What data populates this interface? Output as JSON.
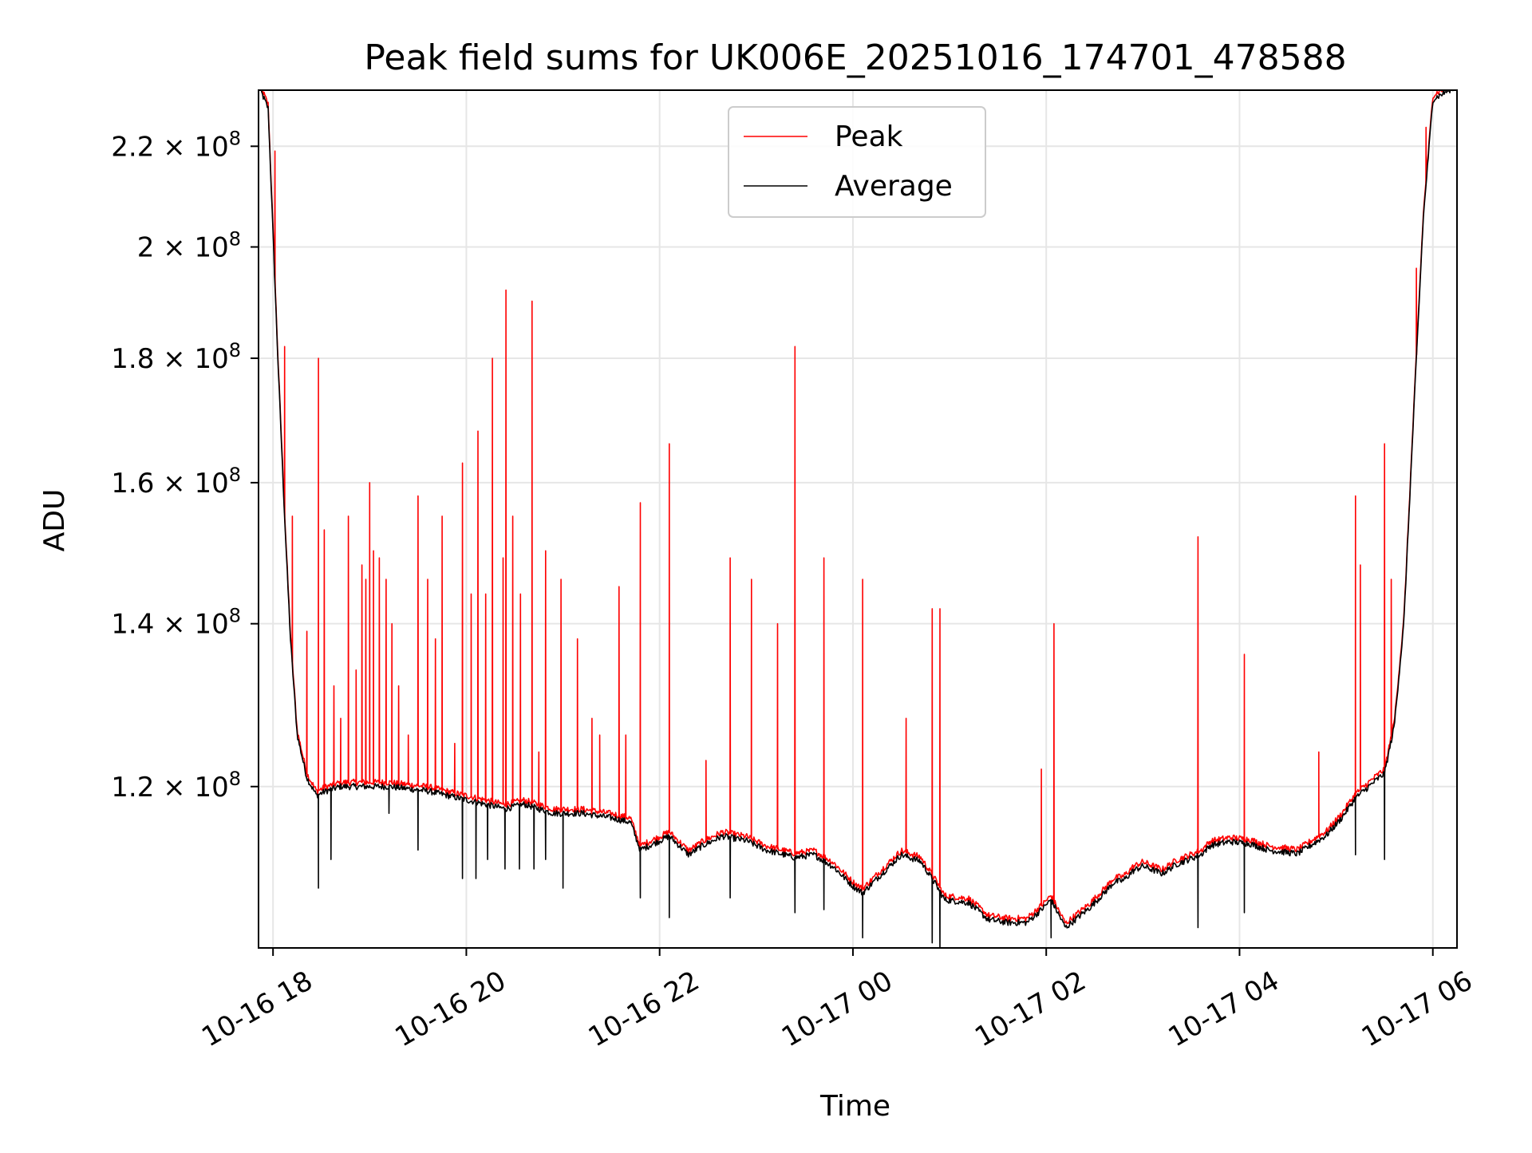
{
  "chart_data": {
    "type": "line",
    "title": "Peak field sums for UK006E_20251016_174701_478588",
    "xlabel": "Time",
    "ylabel": "ADU",
    "y_scale": "log",
    "x_unit": "hours since 2025-10-16 00:00",
    "xlim": [
      17.85,
      30.25
    ],
    "ylim": [
      103000000,
      232000000
    ],
    "grid": true,
    "legend_position": "top-center",
    "x_ticks": [
      {
        "value": 18,
        "label": "10-16 18"
      },
      {
        "value": 20,
        "label": "10-16 20"
      },
      {
        "value": 22,
        "label": "10-16 22"
      },
      {
        "value": 24,
        "label": "10-17 00"
      },
      {
        "value": 26,
        "label": "10-17 02"
      },
      {
        "value": 28,
        "label": "10-17 04"
      },
      {
        "value": 30,
        "label": "10-17 06"
      }
    ],
    "y_ticks": [
      {
        "value": 120000000,
        "mantissa": "1.2",
        "base": "10",
        "exp": "8"
      },
      {
        "value": 140000000,
        "mantissa": "1.4",
        "base": "10",
        "exp": "8"
      },
      {
        "value": 160000000,
        "mantissa": "1.6",
        "base": "10",
        "exp": "8"
      },
      {
        "value": 180000000,
        "mantissa": "1.8",
        "base": "10",
        "exp": "8"
      },
      {
        "value": 200000000,
        "mantissa": "2",
        "base": "10",
        "exp": "8"
      },
      {
        "value": 220000000,
        "mantissa": "2.2",
        "base": "10",
        "exp": "8"
      }
    ],
    "baseline": {
      "x": [
        17.85,
        17.95,
        18.05,
        18.12,
        18.18,
        18.25,
        18.35,
        18.45,
        18.55,
        18.7,
        18.9,
        19.2,
        19.6,
        20.0,
        20.4,
        20.6,
        20.9,
        21.2,
        21.5,
        21.7,
        21.8,
        22.1,
        22.3,
        22.45,
        22.65,
        22.9,
        23.1,
        23.4,
        23.6,
        23.8,
        24.0,
        24.1,
        24.3,
        24.5,
        24.7,
        24.85,
        24.95,
        25.2,
        25.4,
        25.6,
        25.8,
        25.95,
        26.05,
        26.2,
        26.35,
        26.45,
        26.6,
        26.7,
        26.8,
        26.9,
        27.0,
        27.2,
        27.35,
        27.5,
        27.6,
        27.7,
        27.9,
        28.1,
        28.3,
        28.45,
        28.6,
        28.75,
        28.9,
        29.05,
        29.2,
        29.4,
        29.5,
        29.6,
        29.7,
        29.8,
        29.9,
        30.0,
        30.25
      ],
      "values": [
        233000000,
        228000000,
        180000000,
        155000000,
        138000000,
        126000000,
        121000000,
        119000000,
        119500000,
        120000000,
        120000000,
        120000000,
        119500000,
        118500000,
        117500000,
        118000000,
        117000000,
        117000000,
        116500000,
        116000000,
        113000000,
        114500000,
        112500000,
        113500000,
        114500000,
        114000000,
        113000000,
        112200000,
        112500000,
        111200000,
        109200000,
        108500000,
        110500000,
        112500000,
        111800000,
        109500000,
        107800000,
        107500000,
        105800000,
        105500000,
        105500000,
        106800000,
        107800000,
        105000000,
        106200000,
        107000000,
        108500000,
        109600000,
        109800000,
        110800000,
        111300000,
        110500000,
        111500000,
        112100000,
        112500000,
        113500000,
        113900000,
        113700000,
        113000000,
        112800000,
        112600000,
        113600000,
        114600000,
        116400000,
        118700000,
        120600000,
        121500000,
        127000000,
        140000000,
        170000000,
        205000000,
        230000000,
        233000000
      ]
    },
    "series": [
      {
        "name": "Peak",
        "color": "#ff0000",
        "offset": 0.004
      },
      {
        "name": "Average",
        "color": "#000000",
        "offset": 0.0
      }
    ],
    "peak_spikes": [
      {
        "x": 18.02,
        "y": 219000000
      },
      {
        "x": 18.12,
        "y": 182000000
      },
      {
        "x": 18.2,
        "y": 155000000
      },
      {
        "x": 18.35,
        "y": 139000000
      },
      {
        "x": 18.47,
        "y": 180000000
      },
      {
        "x": 18.53,
        "y": 153000000
      },
      {
        "x": 18.63,
        "y": 132000000
      },
      {
        "x": 18.7,
        "y": 128000000
      },
      {
        "x": 18.78,
        "y": 155000000
      },
      {
        "x": 18.86,
        "y": 134000000
      },
      {
        "x": 18.92,
        "y": 148000000
      },
      {
        "x": 18.96,
        "y": 146000000
      },
      {
        "x": 19.0,
        "y": 160000000
      },
      {
        "x": 19.04,
        "y": 150000000
      },
      {
        "x": 19.1,
        "y": 149000000
      },
      {
        "x": 19.17,
        "y": 146000000
      },
      {
        "x": 19.23,
        "y": 140000000
      },
      {
        "x": 19.3,
        "y": 132000000
      },
      {
        "x": 19.4,
        "y": 126000000
      },
      {
        "x": 19.5,
        "y": 158000000
      },
      {
        "x": 19.6,
        "y": 146000000
      },
      {
        "x": 19.68,
        "y": 138000000
      },
      {
        "x": 19.75,
        "y": 155000000
      },
      {
        "x": 19.88,
        "y": 125000000
      },
      {
        "x": 19.96,
        "y": 163000000
      },
      {
        "x": 20.05,
        "y": 144000000
      },
      {
        "x": 20.12,
        "y": 168000000
      },
      {
        "x": 20.2,
        "y": 144000000
      },
      {
        "x": 20.27,
        "y": 180000000
      },
      {
        "x": 20.38,
        "y": 149000000
      },
      {
        "x": 20.41,
        "y": 192000000
      },
      {
        "x": 20.48,
        "y": 155000000
      },
      {
        "x": 20.56,
        "y": 144000000
      },
      {
        "x": 20.68,
        "y": 190000000
      },
      {
        "x": 20.75,
        "y": 124000000
      },
      {
        "x": 20.82,
        "y": 150000000
      },
      {
        "x": 20.98,
        "y": 146000000
      },
      {
        "x": 21.15,
        "y": 138000000
      },
      {
        "x": 21.3,
        "y": 128000000
      },
      {
        "x": 21.38,
        "y": 126000000
      },
      {
        "x": 21.58,
        "y": 145000000
      },
      {
        "x": 21.65,
        "y": 126000000
      },
      {
        "x": 21.8,
        "y": 157000000
      },
      {
        "x": 22.1,
        "y": 166000000
      },
      {
        "x": 22.48,
        "y": 123000000
      },
      {
        "x": 22.73,
        "y": 149000000
      },
      {
        "x": 22.95,
        "y": 146000000
      },
      {
        "x": 23.22,
        "y": 140000000
      },
      {
        "x": 23.4,
        "y": 182000000
      },
      {
        "x": 23.7,
        "y": 149000000
      },
      {
        "x": 24.1,
        "y": 146000000
      },
      {
        "x": 24.55,
        "y": 128000000
      },
      {
        "x": 24.82,
        "y": 142000000
      },
      {
        "x": 24.9,
        "y": 142000000
      },
      {
        "x": 25.95,
        "y": 122000000
      },
      {
        "x": 26.08,
        "y": 140000000
      },
      {
        "x": 27.57,
        "y": 152000000
      },
      {
        "x": 28.05,
        "y": 136000000
      },
      {
        "x": 28.82,
        "y": 124000000
      },
      {
        "x": 29.2,
        "y": 158000000
      },
      {
        "x": 29.25,
        "y": 148000000
      },
      {
        "x": 29.5,
        "y": 166000000
      },
      {
        "x": 29.57,
        "y": 146000000
      },
      {
        "x": 29.83,
        "y": 196000000
      },
      {
        "x": 29.93,
        "y": 224000000
      }
    ],
    "average_dips": [
      {
        "x": 18.47,
        "y": 109000000
      },
      {
        "x": 18.6,
        "y": 112000000
      },
      {
        "x": 19.2,
        "y": 117000000
      },
      {
        "x": 19.5,
        "y": 113000000
      },
      {
        "x": 19.96,
        "y": 110000000
      },
      {
        "x": 20.1,
        "y": 110000000
      },
      {
        "x": 20.22,
        "y": 112000000
      },
      {
        "x": 20.4,
        "y": 111000000
      },
      {
        "x": 20.55,
        "y": 111000000
      },
      {
        "x": 20.7,
        "y": 111000000
      },
      {
        "x": 20.82,
        "y": 112000000
      },
      {
        "x": 21.0,
        "y": 109000000
      },
      {
        "x": 21.8,
        "y": 108000000
      },
      {
        "x": 22.1,
        "y": 106000000
      },
      {
        "x": 22.73,
        "y": 108000000
      },
      {
        "x": 23.4,
        "y": 106500000
      },
      {
        "x": 23.7,
        "y": 106800000
      },
      {
        "x": 24.1,
        "y": 104000000
      },
      {
        "x": 24.82,
        "y": 103500000
      },
      {
        "x": 24.9,
        "y": 102500000
      },
      {
        "x": 26.05,
        "y": 104000000
      },
      {
        "x": 27.57,
        "y": 105000000
      },
      {
        "x": 28.05,
        "y": 106500000
      },
      {
        "x": 29.2,
        "y": 112500000
      },
      {
        "x": 29.5,
        "y": 112000000
      }
    ]
  }
}
